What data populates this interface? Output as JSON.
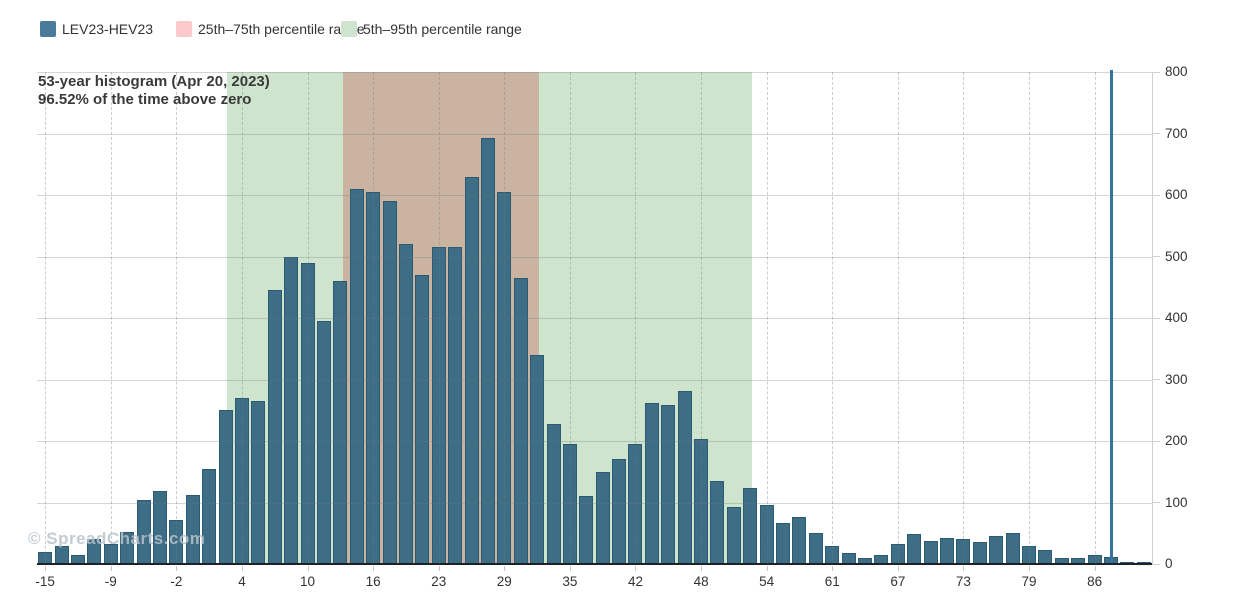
{
  "legend": {
    "items": [
      {
        "label": "LEV23-HEV23",
        "color": "#4a7a99"
      },
      {
        "label": "25th–75th percentile range",
        "color": "#fbc9c9"
      },
      {
        "label": "5th–95th percentile range",
        "color": "#cfe4cd"
      }
    ]
  },
  "title": {
    "line1": "53-year histogram (Apr 20, 2023)",
    "line2": "96.52% of the time above zero"
  },
  "watermark": "© SpreadCharts.com",
  "colors": {
    "bar_fill": "#3e6d86",
    "bar_border": "#2b5a73",
    "region_green": "#cfe4cd",
    "region_pink": "#f9c8c8",
    "overlap_visible": "#cec0a4",
    "current_value_line": "#36749e",
    "axis_text": "#333333",
    "gridline": "#d6d6d6"
  },
  "chart_data": {
    "type": "bar",
    "title": "53-year histogram (Apr 20, 2023)",
    "subtitle": "96.52% of the time above zero",
    "series_name": "LEV23-HEV23",
    "x_start": -15,
    "bin_width": 1.578,
    "values": [
      20,
      30,
      15,
      40,
      33,
      52,
      104,
      119,
      71,
      112,
      155,
      250,
      270,
      265,
      445,
      500,
      490,
      395,
      460,
      610,
      605,
      590,
      520,
      470,
      515,
      515,
      630,
      693,
      605,
      465,
      340,
      228,
      195,
      110,
      150,
      170,
      195,
      262,
      258,
      281,
      203,
      135,
      92,
      124,
      96,
      66,
      76,
      50,
      30,
      18,
      10,
      15,
      33,
      48,
      38,
      43,
      40,
      35,
      45,
      50,
      30,
      22,
      10,
      10,
      14,
      11,
      4,
      3
    ],
    "x_tick_labels": [
      "-15",
      "-9",
      "-2",
      "4",
      "10",
      "16",
      "23",
      "29",
      "35",
      "42",
      "48",
      "54",
      "61",
      "67",
      "73",
      "79",
      "86"
    ],
    "label_every_n_bars": 4,
    "ylim": [
      0,
      800
    ],
    "y_ticks": [
      0,
      100,
      200,
      300,
      400,
      500,
      600,
      700,
      800
    ],
    "y_axis_side": "right",
    "grid": true,
    "legend_position": "top-left",
    "regions": [
      {
        "name": "5th–95th percentile range",
        "from": 2.5,
        "to": 53,
        "color": "#cfe4cd"
      },
      {
        "name": "25th–75th percentile range",
        "from": 13.7,
        "to": 32.5,
        "color": "#f9c8c8"
      }
    ],
    "current_value_line": {
      "x": 87.6,
      "color": "#36749e"
    }
  }
}
